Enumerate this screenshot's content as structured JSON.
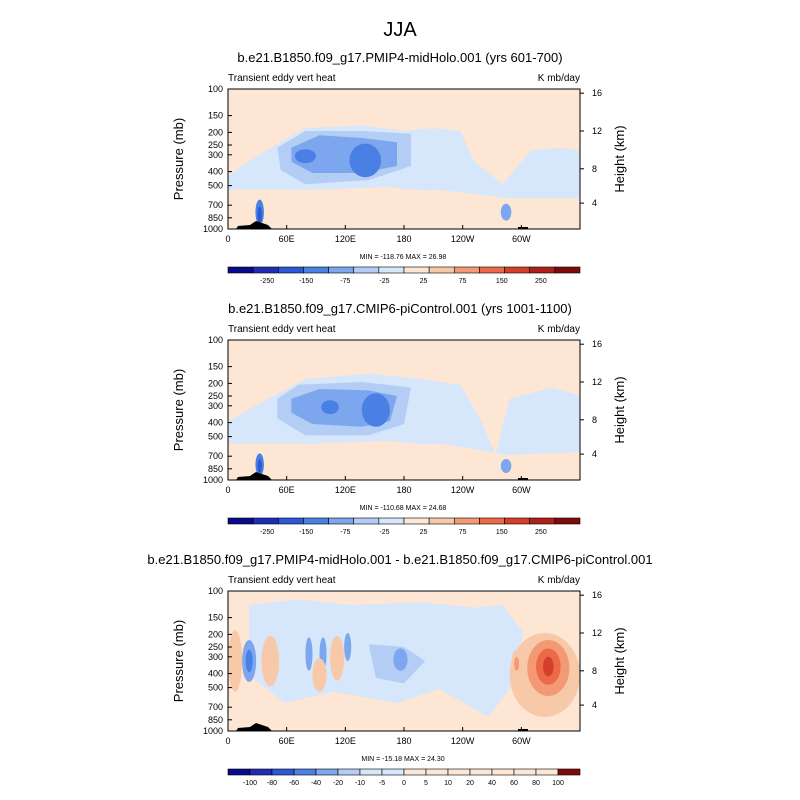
{
  "figure": {
    "title": "JJA"
  },
  "palette": {
    "blues": [
      "#0a0a8c",
      "#1f2db4",
      "#2d58d6",
      "#4a7fe3",
      "#7ca7ee",
      "#b3cdf4",
      "#d6e6fb"
    ],
    "reds": [
      "#fde6d3",
      "#f8c9a9",
      "#f39a75",
      "#eb6a48",
      "#d5402c",
      "#b0201b",
      "#7e0b0b"
    ],
    "background": "#ffffff",
    "terrain": "#000000"
  },
  "chart_data": [
    {
      "type": "heatmap",
      "title": "b.e21.B1850.f09_g17.PMIP4-midHolo.001 (yrs 601-700)",
      "left_label": "Transient eddy vert heat",
      "right_label": "K mb/day",
      "ylabel": "Pressure (mb)",
      "ylabel_right": "Height (km)",
      "x_tick_labels": [
        "0",
        "60E",
        "120E",
        "180",
        "120W",
        "60W"
      ],
      "y_tick_labels": [
        "100",
        "150",
        "200",
        "250",
        "300",
        "400",
        "500",
        "700",
        "850",
        "1000"
      ],
      "y_right_tick_labels": [
        "16",
        "12",
        "8",
        "4"
      ],
      "stats": "MIN = -118.76   MAX =  26.98",
      "colorbar_labels": [
        "-250",
        "-150",
        "-75",
        "-25",
        "25",
        "75",
        "150",
        "250"
      ],
      "colorbar_levels": 14
    },
    {
      "type": "heatmap",
      "title": "b.e21.B1850.f09_g17.CMIP6-piControl.001 (yrs 1001-1100)",
      "left_label": "Transient eddy vert heat",
      "right_label": "K mb/day",
      "ylabel": "Pressure (mb)",
      "ylabel_right": "Height (km)",
      "x_tick_labels": [
        "0",
        "60E",
        "120E",
        "180",
        "120W",
        "60W"
      ],
      "y_tick_labels": [
        "100",
        "150",
        "200",
        "250",
        "300",
        "400",
        "500",
        "700",
        "850",
        "1000"
      ],
      "y_right_tick_labels": [
        "16",
        "12",
        "8",
        "4"
      ],
      "stats": "MIN = -110.68   MAX =  24.68",
      "colorbar_labels": [
        "-250",
        "-150",
        "-75",
        "-25",
        "25",
        "75",
        "150",
        "250"
      ],
      "colorbar_levels": 14
    },
    {
      "type": "heatmap",
      "title": "b.e21.B1850.f09_g17.PMIP4-midHolo.001 - b.e21.B1850.f09_g17.CMIP6-piControl.001",
      "left_label": "Transient eddy vert heat",
      "right_label": "K mb/day",
      "ylabel": "Pressure (mb)",
      "ylabel_right": "Height (km)",
      "x_tick_labels": [
        "0",
        "60E",
        "120E",
        "180",
        "120W",
        "60W"
      ],
      "y_tick_labels": [
        "100",
        "150",
        "200",
        "250",
        "300",
        "400",
        "500",
        "700",
        "850",
        "1000"
      ],
      "y_right_tick_labels": [
        "16",
        "12",
        "8",
        "4"
      ],
      "stats": "MIN = -15.18   MAX =  24.30",
      "colorbar_labels": [
        "-100",
        "-80",
        "-60",
        "-40",
        "-20",
        "-10",
        "-5",
        "0",
        "5",
        "10",
        "20",
        "40",
        "60",
        "80",
        "100"
      ],
      "colorbar_levels": 16
    }
  ]
}
